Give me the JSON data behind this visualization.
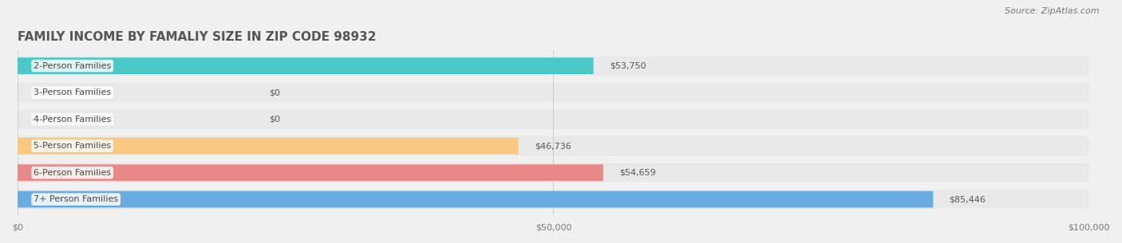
{
  "title": "FAMILY INCOME BY FAMALIY SIZE IN ZIP CODE 98932",
  "source": "Source: ZipAtlas.com",
  "categories": [
    "2-Person Families",
    "3-Person Families",
    "4-Person Families",
    "5-Person Families",
    "6-Person Families",
    "7+ Person Families"
  ],
  "values": [
    53750,
    0,
    0,
    46736,
    54659,
    85446
  ],
  "bar_colors": [
    "#4bc8c8",
    "#b0b0e0",
    "#f0a0b8",
    "#f8c880",
    "#e88888",
    "#6aace0"
  ],
  "value_labels": [
    "$53,750",
    "$0",
    "$0",
    "$46,736",
    "$54,659",
    "$85,446"
  ],
  "xlim": [
    0,
    100000
  ],
  "xticks": [
    0,
    50000,
    100000
  ],
  "xtick_labels": [
    "$0",
    "$50,000",
    "$100,000"
  ],
  "background_color": "#f0f0f0",
  "bar_background_color": "#e8e8e8",
  "title_fontsize": 11,
  "source_fontsize": 8,
  "label_fontsize": 8,
  "value_fontsize": 8
}
